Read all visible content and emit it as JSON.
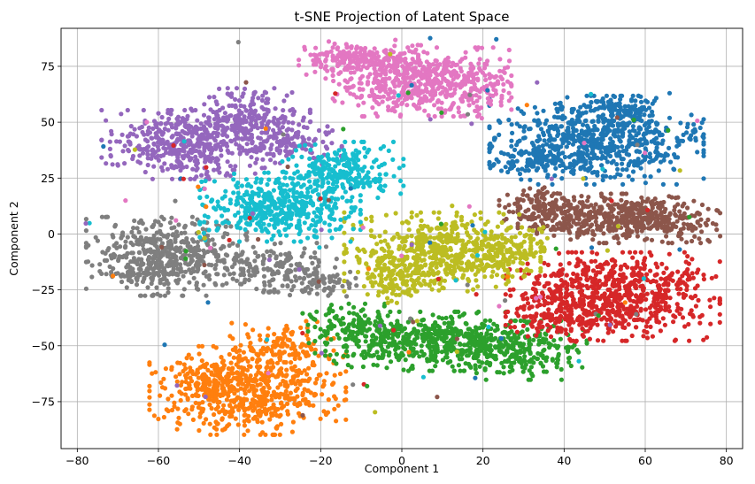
{
  "chart_data": {
    "type": "scatter",
    "title": "t-SNE Projection of Latent Space",
    "xlabel": "Component 1",
    "ylabel": "Component 2",
    "xlim": [
      -84,
      84
    ],
    "ylim": [
      -96,
      92
    ],
    "xticks": [
      -80,
      -60,
      -40,
      -20,
      0,
      20,
      40,
      60,
      80
    ],
    "yticks": [
      -75,
      -50,
      -25,
      0,
      25,
      50,
      75
    ],
    "grid": true,
    "marker_size": 2.6,
    "series": [
      {
        "color": "#1f77b4",
        "clusters": [
          {
            "center": [
              48,
              42
            ],
            "spread": [
              12,
              9
            ],
            "count": 650
          },
          {
            "center": [
              35,
              33
            ],
            "spread": [
              6,
              4
            ],
            "count": 120
          },
          {
            "center": [
              55,
              55
            ],
            "spread": [
              5,
              4
            ],
            "count": 80
          }
        ]
      },
      {
        "color": "#ff7f0e",
        "clusters": [
          {
            "center": [
              -38,
              -70
            ],
            "spread": [
              11,
              9
            ],
            "count": 600
          },
          {
            "center": [
              -30,
              -50
            ],
            "spread": [
              6,
              5
            ],
            "count": 120
          },
          {
            "center": [
              -48,
              -65
            ],
            "spread": [
              5,
              6
            ],
            "count": 80
          }
        ]
      },
      {
        "color": "#2ca02c",
        "clusters": [
          {
            "center": [
              5,
              -48
            ],
            "spread": [
              12,
              6
            ],
            "count": 500
          },
          {
            "center": [
              28,
              -52
            ],
            "spread": [
              8,
              6
            ],
            "count": 250
          },
          {
            "center": [
              -12,
              -40
            ],
            "spread": [
              6,
              4
            ],
            "count": 100
          }
        ]
      },
      {
        "color": "#d62728",
        "clusters": [
          {
            "center": [
              52,
              -28
            ],
            "spread": [
              12,
              9
            ],
            "count": 750
          },
          {
            "center": [
              40,
              -35
            ],
            "spread": [
              6,
              6
            ],
            "count": 100
          }
        ]
      },
      {
        "color": "#9467bd",
        "clusters": [
          {
            "center": [
              -52,
              40
            ],
            "spread": [
              10,
              7
            ],
            "count": 450
          },
          {
            "center": [
              -38,
              52
            ],
            "spread": [
              7,
              6
            ],
            "count": 200
          },
          {
            "center": [
              -28,
              40
            ],
            "spread": [
              6,
              5
            ],
            "count": 100
          }
        ]
      },
      {
        "color": "#8c564b",
        "clusters": [
          {
            "center": [
              55,
              7
            ],
            "spread": [
              12,
              5
            ],
            "count": 550
          },
          {
            "center": [
              35,
              12
            ],
            "spread": [
              5,
              4
            ],
            "count": 120
          }
        ]
      },
      {
        "color": "#e377c2",
        "clusters": [
          {
            "center": [
              5,
              68
            ],
            "spread": [
              10,
              7
            ],
            "count": 500
          },
          {
            "center": [
              -10,
              78
            ],
            "spread": [
              7,
              4
            ],
            "count": 200
          },
          {
            "center": [
              18,
              65
            ],
            "spread": [
              4,
              6
            ],
            "count": 80
          }
        ]
      },
      {
        "color": "#7f7f7f",
        "clusters": [
          {
            "center": [
              -58,
              -10
            ],
            "spread": [
              9,
              8
            ],
            "count": 500
          },
          {
            "center": [
              -30,
              -15
            ],
            "spread": [
              7,
              5
            ],
            "count": 150
          },
          {
            "center": [
              -20,
              -22
            ],
            "spread": [
              4,
              3
            ],
            "count": 60
          }
        ]
      },
      {
        "color": "#bcbd22",
        "clusters": [
          {
            "center": [
              10,
              -8
            ],
            "spread": [
              11,
              8
            ],
            "count": 600
          },
          {
            "center": [
              28,
              -8
            ],
            "spread": [
              4,
              5
            ],
            "count": 100
          },
          {
            "center": [
              -2,
              -22
            ],
            "spread": [
              4,
              4
            ],
            "count": 80
          }
        ]
      },
      {
        "color": "#17becf",
        "clusters": [
          {
            "center": [
              -30,
              12
            ],
            "spread": [
              9,
              7
            ],
            "count": 450
          },
          {
            "center": [
              -15,
              28
            ],
            "spread": [
              7,
              6
            ],
            "count": 250
          }
        ]
      }
    ],
    "noise_points": 160
  }
}
